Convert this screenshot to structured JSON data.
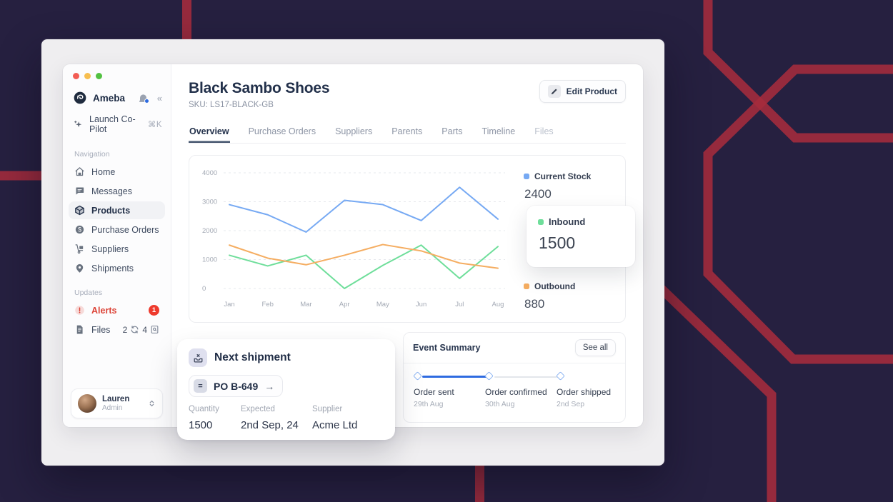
{
  "colors": {
    "background": "#262040",
    "decor_red": "#A62B3C",
    "accent_blue": "#2E6BE0",
    "alert_red": "#DC4337"
  },
  "sidebar": {
    "brand": "Ameba",
    "copilot": {
      "label": "Launch Co-Pilot",
      "shortcut": "⌘K"
    },
    "nav_label": "Navigation",
    "nav": [
      {
        "label": "Home"
      },
      {
        "label": "Messages"
      },
      {
        "label": "Products",
        "active": true
      },
      {
        "label": "Purchase Orders"
      },
      {
        "label": "Suppliers"
      },
      {
        "label": "Shipments"
      }
    ],
    "updates_label": "Updates",
    "alerts": {
      "label": "Alerts",
      "badge": "1"
    },
    "files": {
      "label": "Files",
      "sync_count": "2",
      "doc_count": "4"
    },
    "user": {
      "name": "Lauren",
      "role": "Admin"
    }
  },
  "header": {
    "title": "Black Sambo Shoes",
    "sku": "SKU: LS17-BLACK-GB",
    "edit_label": "Edit Product"
  },
  "tabs": {
    "active": "Overview",
    "items": [
      "Overview",
      "Purchase Orders",
      "Suppliers",
      "Parents",
      "Parts",
      "Timeline",
      "Files"
    ]
  },
  "chart_data": {
    "type": "line",
    "x": [
      "Jan",
      "Feb",
      "Mar",
      "Apr",
      "May",
      "Jun",
      "Jul",
      "Aug"
    ],
    "series": [
      {
        "name": "Current Stock",
        "color": "#76A9F3",
        "values": [
          2900,
          2550,
          1950,
          3050,
          2900,
          2350,
          3500,
          2400
        ]
      },
      {
        "name": "Inbound",
        "color": "#6EDE9A",
        "values": [
          1150,
          780,
          1150,
          0,
          800,
          1500,
          350,
          1450
        ]
      },
      {
        "name": "Outbound",
        "color": "#F5AD61",
        "values": [
          1500,
          1050,
          820,
          1150,
          1520,
          1300,
          880,
          700
        ]
      }
    ],
    "ylim": [
      0,
      4000
    ],
    "yticks": [
      4000,
      3000,
      2000,
      1000,
      0
    ],
    "grid": "horizontal-dashed",
    "legend_position": "right",
    "title": ""
  },
  "stats": [
    {
      "label": "Current Stock",
      "value": "2400",
      "color": "#76A9F3",
      "highlighted": false
    },
    {
      "label": "Inbound",
      "value": "1500",
      "color": "#6EDE9A",
      "highlighted": true
    },
    {
      "label": "Outbound",
      "value": "880",
      "color": "#F5AD61",
      "highlighted": false
    }
  ],
  "next_shipment": {
    "title": "Next shipment",
    "po_label": "PO B-649",
    "po_arrow": "→",
    "po_icon_glyph": "=",
    "fields": [
      {
        "label": "Quantity",
        "value": "1500"
      },
      {
        "label": "Expected",
        "value": "2nd Sep, 24"
      },
      {
        "label": "Supplier",
        "value": "Acme Ltd"
      }
    ]
  },
  "event_summary": {
    "title": "Event Summary",
    "action": "See all",
    "milestones": [
      {
        "label": "Order sent",
        "date": "29th Aug",
        "done": true
      },
      {
        "label": "Order confirmed",
        "date": "30th Aug",
        "done": true
      },
      {
        "label": "Order shipped",
        "date": "2nd Sep",
        "done": false
      }
    ]
  }
}
